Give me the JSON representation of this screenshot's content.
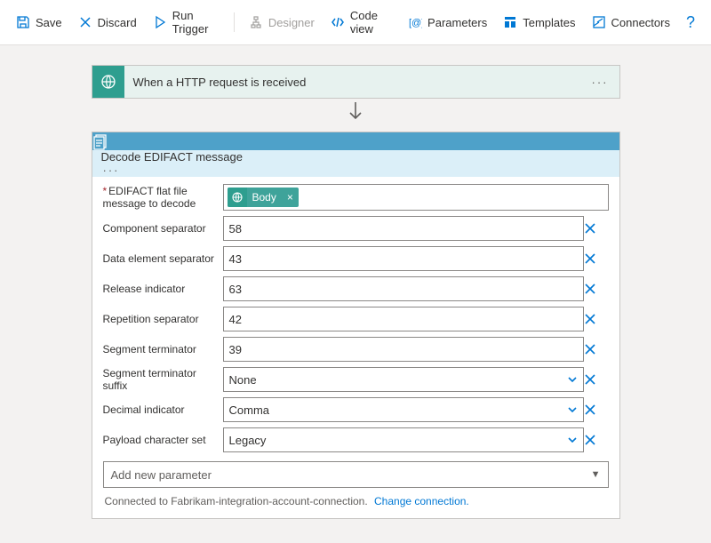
{
  "colors": {
    "accent": "#0078d4",
    "canvas_bg": "#f3f2f1",
    "trigger_header_bg": "#e7f2ef",
    "trigger_icon_bg": "#2e9e8f",
    "action_header_bg": "#dbeff8",
    "action_icon_bg": "#4ea1c9",
    "token_bg": "#3fa39a",
    "border": "#8a8886",
    "text": "#323130",
    "muted": "#605e5c"
  },
  "toolbar": {
    "save": "Save",
    "discard": "Discard",
    "run_trigger": "Run Trigger",
    "designer": "Designer",
    "code_view": "Code view",
    "parameters": "Parameters",
    "templates": "Templates",
    "connectors": "Connectors",
    "help": "?"
  },
  "trigger": {
    "title": "When a HTTP request is received"
  },
  "action": {
    "title": "Decode EDIFACT message",
    "required_field": {
      "label": "EDIFACT flat file message to decode",
      "token_label": "Body"
    },
    "params": [
      {
        "label": "Component separator",
        "value": "58",
        "type": "text"
      },
      {
        "label": "Data element separator",
        "value": "43",
        "type": "text"
      },
      {
        "label": "Release indicator",
        "value": "63",
        "type": "text"
      },
      {
        "label": "Repetition separator",
        "value": "42",
        "type": "text"
      },
      {
        "label": "Segment terminator",
        "value": "39",
        "type": "text"
      },
      {
        "label": "Segment terminator suffix",
        "value": "None",
        "type": "select"
      },
      {
        "label": "Decimal indicator",
        "value": "Comma",
        "type": "select"
      },
      {
        "label": "Payload character set",
        "value": "Legacy",
        "type": "select"
      }
    ],
    "add_param": "Add new parameter",
    "footer_text": "Connected to Fabrikam-integration-account-connection.",
    "footer_link": "Change connection."
  }
}
